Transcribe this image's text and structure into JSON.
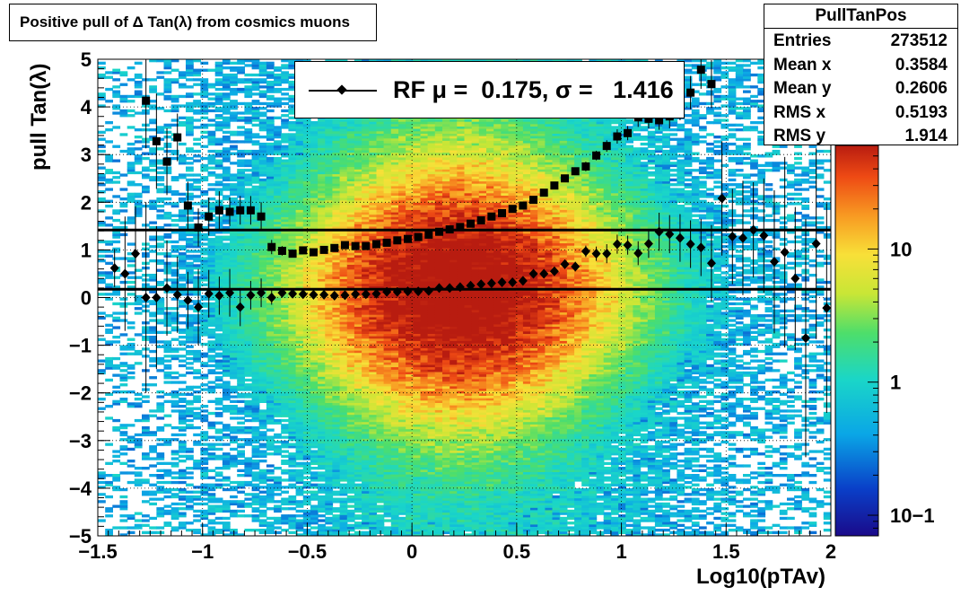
{
  "title": "Positive pull of Δ Tan(λ) from cosmics muons",
  "stats": {
    "name": "PullTanPos",
    "rows": [
      {
        "label": "Entries",
        "value": "273512"
      },
      {
        "label": "Mean x",
        "value": "0.3584"
      },
      {
        "label": "Mean y",
        "value": "0.2606"
      },
      {
        "label": "RMS x",
        "value": "0.5193"
      },
      {
        "label": "RMS y",
        "value": "1.914"
      }
    ]
  },
  "legend": {
    "label": "RF μ =  0.175, σ =   1.416"
  },
  "chart_data": {
    "type": "heatmap",
    "xlabel": "Log10(pTAv)",
    "ylabel": "pull Tan(λ)",
    "xlim": [
      -1.5,
      2
    ],
    "ylim": [
      -5,
      5
    ],
    "x_ticks": [
      -1.5,
      -1,
      -0.5,
      0,
      0.5,
      1,
      1.5,
      2
    ],
    "x_tick_labels": [
      "−1.5",
      "−1",
      "−0.5",
      "0",
      "0.5",
      "1",
      "1.5",
      "2"
    ],
    "y_ticks": [
      -5,
      -4,
      -3,
      -2,
      -1,
      0,
      1,
      2,
      3,
      4,
      5
    ],
    "y_tick_labels": [
      "−5",
      "−4",
      "−3",
      "−2",
      "−1",
      "0",
      "1",
      "2",
      "3",
      "4",
      "5"
    ],
    "grid": true,
    "colorbar": {
      "scale": "log",
      "range": [
        0.07,
        60
      ],
      "tick_labels": [
        "10",
        "1",
        "10−1"
      ],
      "tick_values": [
        10,
        1,
        0.1
      ]
    },
    "hlines": [
      0.175,
      1.416
    ],
    "series": [
      {
        "marker": "diamond",
        "x": [
          -1.42,
          -1.37,
          -1.32,
          -1.27,
          -1.22,
          -1.17,
          -1.12,
          -1.07,
          -1.02,
          -0.97,
          -0.92,
          -0.87,
          -0.82,
          -0.77,
          -0.72,
          -0.67,
          -0.62,
          -0.57,
          -0.52,
          -0.47,
          -0.42,
          -0.37,
          -0.32,
          -0.27,
          -0.22,
          -0.17,
          -0.12,
          -0.07,
          -0.02,
          0.03,
          0.08,
          0.13,
          0.18,
          0.23,
          0.28,
          0.33,
          0.38,
          0.43,
          0.48,
          0.53,
          0.58,
          0.63,
          0.68,
          0.73,
          0.78,
          0.83,
          0.88,
          0.93,
          0.98,
          1.03,
          1.08,
          1.13,
          1.18,
          1.23,
          1.28,
          1.33,
          1.38,
          1.43,
          1.48,
          1.53,
          1.58,
          1.63,
          1.68,
          1.73,
          1.78,
          1.83,
          1.88,
          1.93,
          1.98
        ],
        "y": [
          0.62,
          0.5,
          0.92,
          0.0,
          0.0,
          0.2,
          0.06,
          -0.06,
          -0.2,
          0.08,
          0.04,
          0.1,
          -0.2,
          0.05,
          0.1,
          0.0,
          0.1,
          0.08,
          0.07,
          0.06,
          0.06,
          0.04,
          0.05,
          0.07,
          0.07,
          0.08,
          0.12,
          0.12,
          0.13,
          0.13,
          0.14,
          0.2,
          0.2,
          0.22,
          0.25,
          0.28,
          0.3,
          0.32,
          0.32,
          0.35,
          0.5,
          0.5,
          0.55,
          0.7,
          0.65,
          0.97,
          0.92,
          0.92,
          1.12,
          1.1,
          0.93,
          1.13,
          1.38,
          1.33,
          1.25,
          1.12,
          1.05,
          0.72,
          2.08,
          1.28,
          1.25,
          1.42,
          1.3,
          0.75,
          0.95,
          0.4,
          -0.85,
          1.13,
          -0.22
        ],
        "yerr": [
          0.4,
          1.2,
          1.0,
          2.0,
          1.5,
          1.0,
          0.8,
          0.6,
          0.8,
          0.5,
          0.4,
          0.5,
          0.4,
          0.3,
          0.3,
          0.15,
          0.1,
          0.08,
          0.06,
          0.05,
          0.04,
          0.04,
          0.03,
          0.03,
          0.03,
          0.03,
          0.03,
          0.03,
          0.03,
          0.03,
          0.03,
          0.03,
          0.03,
          0.03,
          0.03,
          0.03,
          0.03,
          0.04,
          0.04,
          0.05,
          0.05,
          0.06,
          0.08,
          0.1,
          0.1,
          0.12,
          0.15,
          0.2,
          0.2,
          0.2,
          0.25,
          0.3,
          0.4,
          0.4,
          0.5,
          0.5,
          0.6,
          0.8,
          1.2,
          1.0,
          1.2,
          1.0,
          1.2,
          1.5,
          2.0,
          1.5,
          2.5,
          2.0,
          2.2
        ]
      },
      {
        "marker": "square",
        "x": [
          -1.27,
          -1.22,
          -1.17,
          -1.12,
          -1.07,
          -1.02,
          -0.97,
          -0.92,
          -0.87,
          -0.82,
          -0.77,
          -0.72,
          -0.67,
          -0.62,
          -0.57,
          -0.52,
          -0.47,
          -0.42,
          -0.37,
          -0.32,
          -0.27,
          -0.22,
          -0.17,
          -0.12,
          -0.07,
          -0.02,
          0.03,
          0.08,
          0.13,
          0.18,
          0.23,
          0.28,
          0.33,
          0.38,
          0.43,
          0.48,
          0.53,
          0.58,
          0.63,
          0.68,
          0.73,
          0.78,
          0.83,
          0.88,
          0.93,
          0.98,
          1.03,
          1.08,
          1.13,
          1.18,
          1.23,
          1.28,
          1.33,
          1.38,
          1.43
        ],
        "y": [
          4.13,
          3.28,
          2.85,
          3.36,
          1.93,
          1.47,
          1.7,
          1.83,
          1.8,
          1.83,
          1.83,
          1.7,
          1.06,
          0.98,
          0.92,
          0.99,
          0.95,
          1.0,
          1.04,
          1.1,
          1.08,
          1.08,
          1.12,
          1.15,
          1.2,
          1.23,
          1.27,
          1.32,
          1.38,
          1.43,
          1.48,
          1.55,
          1.62,
          1.7,
          1.77,
          1.86,
          1.93,
          2.05,
          2.2,
          2.35,
          2.5,
          2.65,
          2.75,
          2.98,
          3.18,
          3.38,
          3.45,
          3.78,
          3.75,
          3.72,
          3.8,
          4.02,
          4.3,
          4.78,
          4.48
        ],
        "yerr": [
          1.0,
          1.0,
          0.7,
          0.5,
          0.5,
          0.4,
          0.4,
          0.4,
          0.3,
          0.3,
          0.3,
          0.3,
          0.15,
          0.1,
          0.08,
          0.06,
          0.05,
          0.04,
          0.04,
          0.03,
          0.03,
          0.03,
          0.03,
          0.03,
          0.03,
          0.03,
          0.03,
          0.03,
          0.03,
          0.03,
          0.03,
          0.03,
          0.04,
          0.04,
          0.04,
          0.05,
          0.05,
          0.06,
          0.06,
          0.08,
          0.08,
          0.08,
          0.1,
          0.1,
          0.12,
          0.15,
          0.15,
          0.2,
          0.2,
          0.2,
          0.25,
          0.3,
          0.35,
          0.4,
          0.5
        ]
      }
    ]
  }
}
